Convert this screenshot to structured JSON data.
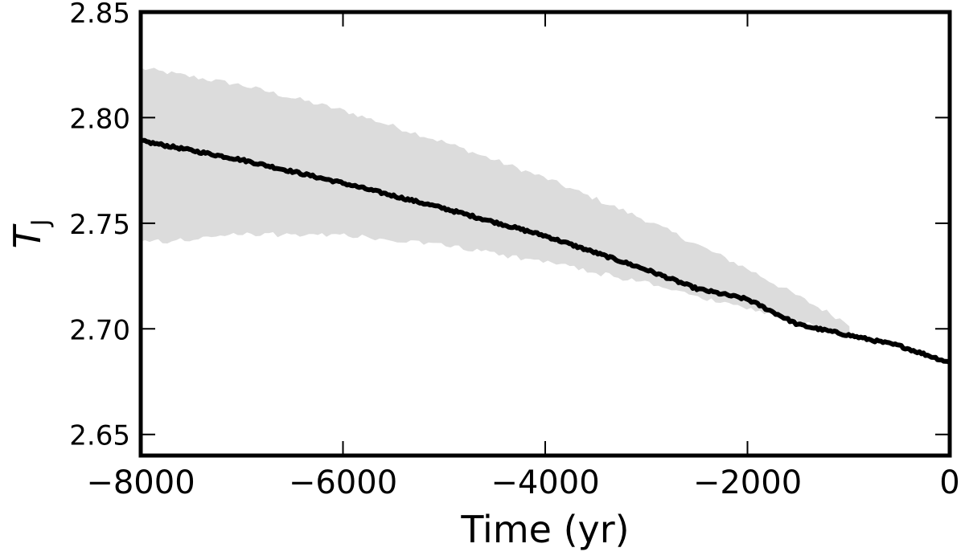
{
  "chart_data": {
    "type": "line",
    "xlabel": "Time (yr)",
    "ylabel": "T",
    "ylabel_subscript": "J",
    "xlim": [
      -8000,
      0
    ],
    "ylim": [
      2.64,
      2.85
    ],
    "x_ticks": [
      -8000,
      -6000,
      -4000,
      -2000,
      0
    ],
    "x_tick_labels": [
      "−8000",
      "−6000",
      "−4000",
      "−2000",
      "0"
    ],
    "y_ticks": [
      2.65,
      2.7,
      2.75,
      2.8,
      2.85
    ],
    "y_tick_labels": [
      "2.65",
      "2.70",
      "2.75",
      "2.80",
      "2.85"
    ],
    "grid": false,
    "series": [
      {
        "role": "nominal",
        "color": "#000000",
        "x": [
          -8000,
          -7000,
          -6000,
          -5000,
          -4000,
          -3000,
          -2500,
          -2000,
          -1500,
          -1000,
          -500,
          0
        ],
        "y": [
          2.789,
          2.78,
          2.769,
          2.757,
          2.744,
          2.728,
          2.719,
          2.714,
          2.702,
          2.697,
          2.692,
          2.684
        ]
      }
    ],
    "clone_envelope": {
      "color": "#dcdcdc",
      "x": [
        -8000,
        -7000,
        -6000,
        -5000,
        -4000,
        -3000,
        -2000,
        -1000
      ],
      "upper": [
        2.823,
        2.815,
        2.803,
        2.788,
        2.771,
        2.751,
        2.728,
        2.702
      ],
      "lower": [
        2.741,
        2.745,
        2.745,
        2.74,
        2.732,
        2.722,
        2.71,
        2.698
      ]
    }
  }
}
